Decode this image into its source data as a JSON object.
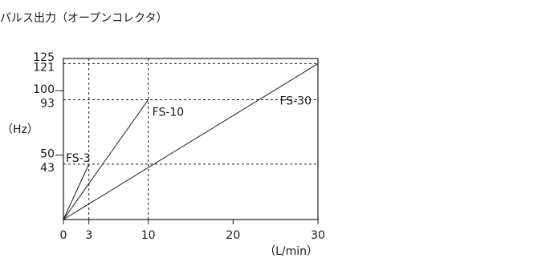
{
  "chart_data": {
    "type": "line",
    "title": "パルス出力（オープンコレクタ）",
    "xlabel": "（L/min）",
    "ylabel": "（Hz）",
    "xlim": [
      0,
      30
    ],
    "ylim": [
      0,
      125
    ],
    "x_ticks": [
      0,
      3,
      10,
      20,
      30
    ],
    "y_ticks": [
      50,
      100,
      125
    ],
    "y_ref_ticks": [
      43,
      93,
      121
    ],
    "x_ref_lines": [
      3,
      10
    ],
    "y_ref_lines": [
      43,
      93,
      121
    ],
    "grid": false,
    "series": [
      {
        "name": "FS-3",
        "x": [
          0,
          3
        ],
        "y": [
          0,
          43
        ]
      },
      {
        "name": "FS-10",
        "x": [
          0,
          10
        ],
        "y": [
          0,
          93
        ]
      },
      {
        "name": "FS-30",
        "x": [
          0,
          30
        ],
        "y": [
          0,
          121
        ]
      }
    ]
  }
}
